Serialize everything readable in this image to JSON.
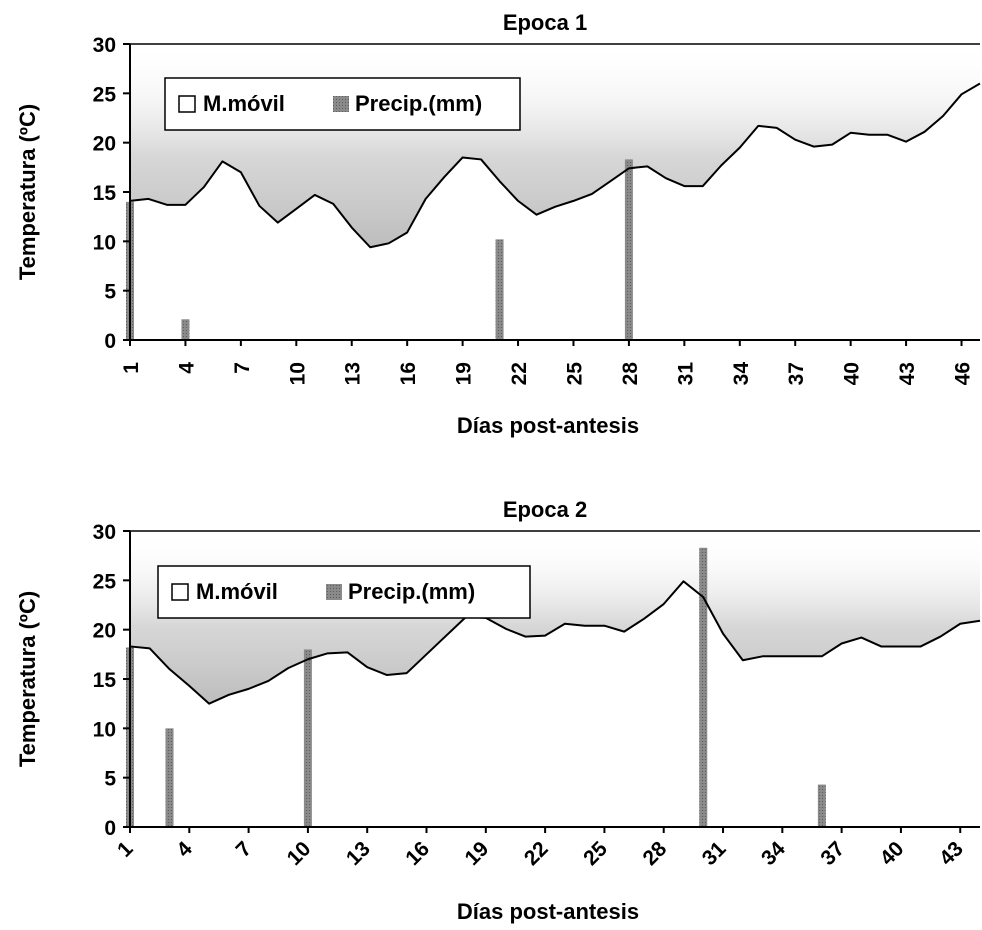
{
  "colors": {
    "line": "#000000",
    "bar": "#7a7a7a",
    "shade": "#c8c8c8",
    "background": "#ffffff"
  },
  "chart_data": [
    {
      "type": "line",
      "title": "Epoca 1",
      "xlabel": "Días post-antesis",
      "ylabel": "Temperatura (ºC)",
      "ylim": [
        0,
        30
      ],
      "yticks": [
        0,
        5,
        10,
        15,
        20,
        25,
        30
      ],
      "xlim": [
        1,
        47
      ],
      "xticks": [
        "1",
        "4",
        "7",
        "10",
        "13",
        "16",
        "19",
        "22",
        "25",
        "28",
        "31",
        "34",
        "37",
        "40",
        "43",
        "46"
      ],
      "legend": {
        "position": "top-left",
        "entries": [
          "M.móvil",
          "Precip.(mm)"
        ]
      },
      "series": [
        {
          "name": "M.móvil",
          "type": "line",
          "x": [
            1,
            2,
            3,
            4,
            5,
            6,
            7,
            8,
            9,
            10,
            11,
            12,
            13,
            14,
            15,
            16,
            17,
            18,
            19,
            20,
            21,
            22,
            23,
            24,
            25,
            26,
            27,
            28,
            29,
            30,
            31,
            32,
            33,
            34,
            35,
            36,
            37,
            38,
            39,
            40,
            41,
            42,
            43,
            44,
            45,
            46,
            47
          ],
          "values": [
            14.1,
            14.3,
            13.7,
            13.7,
            15.5,
            18.1,
            17.0,
            13.6,
            11.9,
            13.3,
            14.7,
            13.8,
            11.4,
            9.4,
            9.8,
            10.9,
            14.3,
            16.5,
            18.5,
            18.3,
            16.1,
            14.1,
            12.7,
            13.5,
            14.1,
            14.8,
            16.1,
            17.4,
            17.6,
            16.4,
            15.6,
            15.6,
            17.7,
            19.5,
            21.7,
            21.5,
            20.3,
            19.6,
            19.8,
            21.0,
            20.8,
            20.8,
            20.1,
            21.1,
            22.7,
            24.9,
            26.0
          ]
        },
        {
          "name": "Precip.(mm)",
          "type": "bar",
          "x": [
            1,
            4,
            21,
            28
          ],
          "values": [
            14.0,
            2.1,
            10.2,
            18.3
          ]
        }
      ]
    },
    {
      "type": "line",
      "title": "Epoca 2",
      "xlabel": "Días post-antesis",
      "ylabel": "Temperatura (ºC)",
      "ylim": [
        0,
        30
      ],
      "yticks": [
        0,
        5,
        10,
        15,
        20,
        25,
        30
      ],
      "xlim": [
        1,
        44
      ],
      "xticks": [
        "1",
        "4",
        "7",
        "10",
        "13",
        "16",
        "19",
        "22",
        "25",
        "28",
        "31",
        "34",
        "37",
        "40",
        "43"
      ],
      "legend": {
        "position": "top-left",
        "entries": [
          "M.móvil",
          "Precip.(mm)"
        ]
      },
      "series": [
        {
          "name": "M.móvil",
          "type": "line",
          "x": [
            1,
            2,
            3,
            4,
            5,
            6,
            7,
            8,
            9,
            10,
            11,
            12,
            13,
            14,
            15,
            16,
            17,
            18,
            19,
            20,
            21,
            22,
            23,
            24,
            25,
            26,
            27,
            28,
            29,
            30,
            31,
            32,
            33,
            34,
            35,
            36,
            37,
            38,
            39,
            40,
            41,
            42,
            43,
            44
          ],
          "values": [
            18.3,
            18.1,
            16.0,
            14.3,
            12.5,
            13.4,
            14.0,
            14.8,
            16.1,
            17.0,
            17.6,
            17.7,
            16.2,
            15.4,
            15.6,
            17.5,
            19.4,
            21.3,
            21.2,
            20.1,
            19.3,
            19.4,
            20.6,
            20.4,
            20.4,
            19.8,
            21.1,
            22.6,
            24.9,
            23.3,
            19.6,
            16.9,
            17.3,
            17.3,
            17.3,
            17.3,
            18.6,
            19.2,
            18.3,
            18.3,
            18.3,
            19.3,
            20.6,
            20.9
          ]
        },
        {
          "name": "Precip.(mm)",
          "type": "bar",
          "x": [
            1,
            3,
            10,
            30,
            36
          ],
          "values": [
            18.2,
            10.0,
            18.0,
            28.3,
            4.3
          ]
        }
      ]
    }
  ]
}
